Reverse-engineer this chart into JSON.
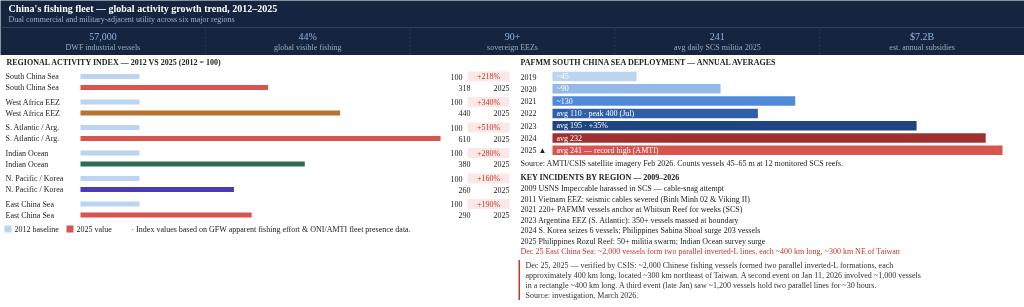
{
  "chart_data": [
    {
      "type": "other",
      "title": "China's fishing fleet — global activity growth trend, 2012–2025",
      "subtitle": "Dual commercial and military-adjacent utility across six major regions",
      "annotations": [
        "57,000",
        "DWF industrial vessels",
        "44%",
        "global visible fishing",
        "90+",
        "sovereign EEZs",
        "241",
        "avg daily SCS militia 2025",
        "$7.2B",
        "est. annual subsidies"
      ]
    },
    {
      "type": "bar",
      "orientation": "horizontal",
      "data_labels": true,
      "legend": "bottom",
      "title": "REGIONAL ACTIVITY INDEX — 2012 VS 2025 (2012 = 100)",
      "categories": [
        "South China Sea",
        "West Africa EEZ",
        "S. Atlantic / Arg.",
        "Indian Ocean",
        "N. Pacific / Korea",
        "East China Sea"
      ],
      "series": [
        {
          "name": "2012 baseline",
          "color": "#bdd4f0",
          "values": [
            100,
            100,
            100,
            100,
            100,
            100
          ]
        },
        {
          "name": "2025 value",
          "color": "#d9534f",
          "colors": [
            "#d9534f",
            "#b87333",
            "#d9534f",
            "#2e6b4f",
            "#4b3bb5",
            "#d9534f"
          ],
          "values": [
            318,
            440,
            610,
            380,
            260,
            290
          ]
        }
      ],
      "annotations": [
        "+218%",
        "+340%",
        "+510%",
        "+280%",
        "+160%",
        "+190%",
        "2025",
        "2025",
        "2025",
        "2025",
        "2025",
        "2025",
        "· Index values based on GFW apparent fishing effort & ONI/AMTI fleet presence data."
      ]
    },
    {
      "type": "bar",
      "orientation": "horizontal",
      "title": "PAFMM SOUTH CHINA SEA DEPLOYMENT — ANNUAL AVERAGES",
      "categories": [
        "2019",
        "2020",
        "2021",
        "2022",
        "2023",
        "2024",
        "2025 ▲"
      ],
      "values": [
        45,
        90,
        130,
        110,
        195,
        232,
        241
      ],
      "colors": [
        "#bcd4f0",
        "#94b8e8",
        "#4f8ad8",
        "#2f5fa6",
        "#1f4580",
        "#9e3030",
        "#d9534f"
      ],
      "value_labels": [
        "~45",
        "~90",
        "~130",
        "avg 110 · peak 400 (Jul)",
        "avg 195 · +35%",
        "avg 232",
        "avg 241 — record high (AMTI)"
      ],
      "annotations": [
        "Source: AMTI/CSIS satellite imagery Feb 2026. Counts vessels 45–65 m at 12 monitored SCS reefs."
      ]
    },
    {
      "type": "other",
      "title": "KEY INCIDENTS BY REGION — 2009–2026",
      "colors": [
        "#222222",
        "#222222",
        "#222222",
        "#222222",
        "#222222",
        "#222222",
        "#c0392b"
      ],
      "annotations": [
        "2009 USNS Impeccable harassed in SCS — cable-snag attempt",
        "2011 Vietnam EEZ: seismic cables severed (Binh Minh 02 & Viking II)",
        "2021 220+ PAFMM vessels anchor at Whitsun Reef for weeks (SCS)",
        "2023 Argentina EEZ (S. Atlantic): 350+ vessels massed at boundary",
        "2024 S. Korea seizes 6 vessels; Philippines Sabina Shoal surge 203 vessels",
        "2025 Philippines Rozul Reef: 50+ militia swarm; Indian Ocean survey surge",
        "Dec 25 East China Sea: ~2,000 vessels form two parallel inverted-L lines, each ~400 km long, ~300 km NE of Taiwan",
        "Dec 25, 2025 — verified by CSIS: ~2,000 Chinese fishing vessels formed two parallel inverted-L formations, each approximately 400 km long, located ~300 km northeast of Taiwan. A second event on Jan 11, 2026 involved ~1,000 vessels in a rectangle ~400 km long. A third event (late Jan) saw ~1,200 vessels hold two parallel lines for ~30 hours. Source: investigation, March 2026."
      ]
    }
  ]
}
